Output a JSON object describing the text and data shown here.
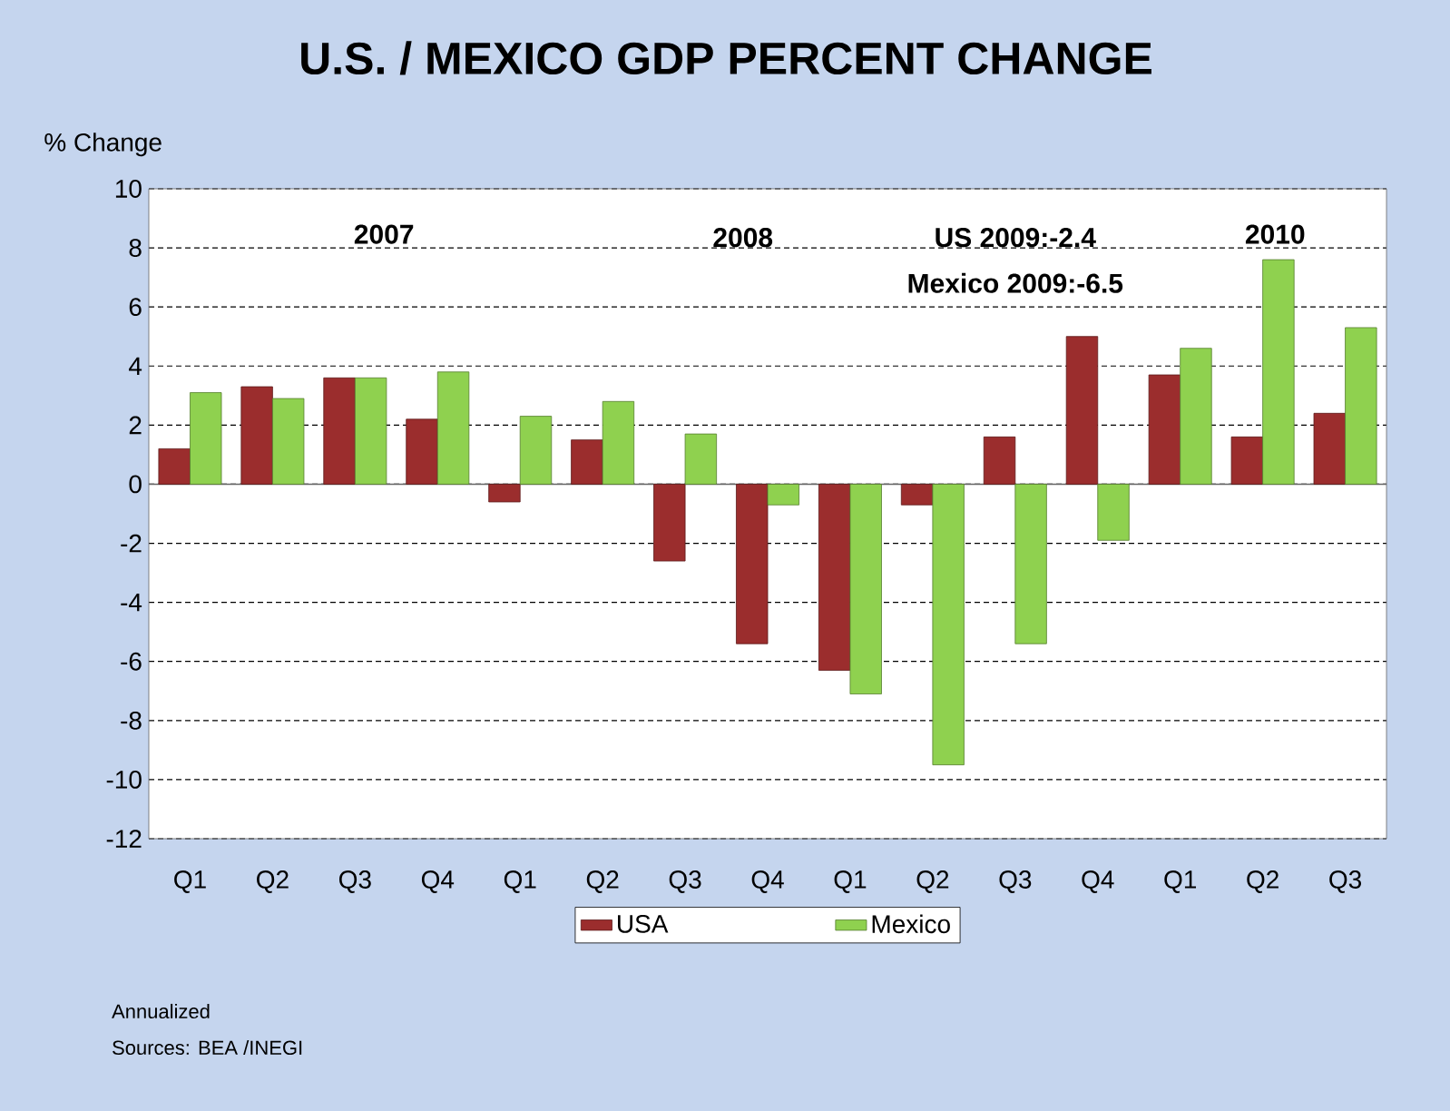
{
  "chart_data": {
    "type": "bar",
    "title": "U.S.  / MEXICO GDP PERCENT CHANGE",
    "ylabel": "% Change",
    "categories": [
      "Q1",
      "Q2",
      "Q3",
      "Q4",
      "Q1",
      "Q2",
      "Q3",
      "Q4",
      "Q1",
      "Q2",
      "Q3",
      "Q4",
      "Q1",
      "Q2",
      "Q3"
    ],
    "series": [
      {
        "name": "USA",
        "color": "#9b2d2d",
        "values": [
          1.2,
          3.3,
          3.6,
          2.2,
          -0.6,
          1.5,
          -2.6,
          -5.4,
          -6.3,
          -0.7,
          1.6,
          5.0,
          3.7,
          1.6,
          2.4
        ]
      },
      {
        "name": "Mexico",
        "color": "#8fd14f",
        "values": [
          3.1,
          2.9,
          3.6,
          3.8,
          2.3,
          2.8,
          1.7,
          -0.7,
          -7.1,
          -9.5,
          -5.4,
          -1.9,
          4.6,
          7.6,
          5.3
        ]
      }
    ],
    "ylim": [
      -12,
      10
    ],
    "yticks": [
      -12,
      -10,
      -8,
      -6,
      -4,
      -2,
      0,
      2,
      4,
      6,
      8,
      10
    ],
    "grid": "y",
    "legend": "bottom",
    "annotations": [
      "2007",
      "2008",
      "US 2009:-2.4",
      "Mexico 2009:-6.5",
      "2010",
      "Annualized",
      "Sources: BEA /INEGI"
    ]
  }
}
